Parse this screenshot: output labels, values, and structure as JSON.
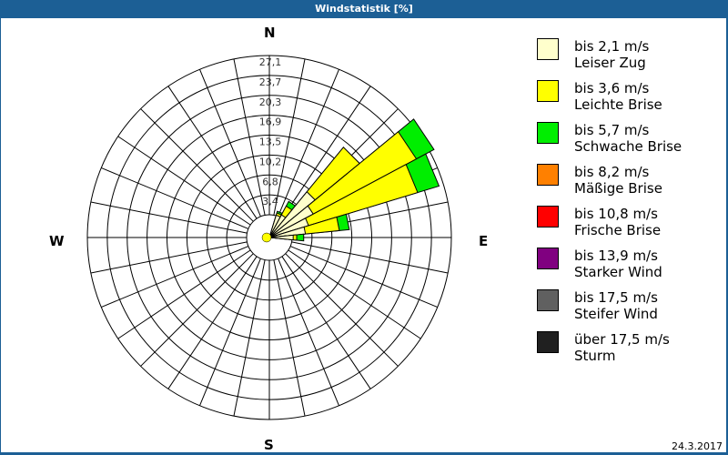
{
  "title": "Windstatistik [%]",
  "date": "24.3.2017",
  "compass": {
    "N": "N",
    "E": "E",
    "S": "S",
    "W": "W"
  },
  "chart_data": {
    "type": "wind-rose",
    "title": "Windstatistik [%]",
    "sectors": 32,
    "sector_width_deg": 11.25,
    "rings": [
      "3,4",
      "6,8",
      "10,2",
      "13,5",
      "16,9",
      "20,3",
      "23,7",
      "27,1"
    ],
    "rmax": 27.1,
    "legend": [
      {
        "range": "bis 2,1 m/s",
        "name": "Leiser Zug",
        "color": "#ffffcc"
      },
      {
        "range": "bis 3,6 m/s",
        "name": "Leichte Brise",
        "color": "#ffff00"
      },
      {
        "range": "bis 5,7 m/s",
        "name": "Schwache Brise",
        "color": "#00ee00"
      },
      {
        "range": "bis 8,2 m/s",
        "name": "Mäßige Brise",
        "color": "#ff8000"
      },
      {
        "range": "bis 10,8 m/s",
        "name": "Frische Brise",
        "color": "#ff0000"
      },
      {
        "range": "bis 13,9 m/s",
        "name": "Starker Wind",
        "color": "#800080"
      },
      {
        "range": "bis 17,5 m/s",
        "name": "Steifer Wind",
        "color": "#606060"
      },
      {
        "range": "über 17,5 m/s",
        "name": "Sturm",
        "color": "#202020"
      }
    ],
    "petals": [
      {
        "dir_deg": 22.5,
        "cumulative": [
          0.1,
          0.5,
          0.8
        ]
      },
      {
        "dir_deg": 33.75,
        "cumulative": [
          0.5,
          2.2,
          3.1
        ]
      },
      {
        "dir_deg": 45,
        "cumulative": [
          6.2,
          16.0,
          16.0
        ]
      },
      {
        "dir_deg": 56.25,
        "cumulative": [
          4.6,
          24.5,
          27.9
        ]
      },
      {
        "dir_deg": 67.5,
        "cumulative": [
          3.1,
          22.5,
          26.3
        ]
      },
      {
        "dir_deg": 78.75,
        "cumulative": [
          2.3,
          8.1,
          9.8
        ]
      },
      {
        "dir_deg": 90,
        "cumulative": [
          0.2,
          0.8,
          2.0
        ]
      }
    ]
  }
}
